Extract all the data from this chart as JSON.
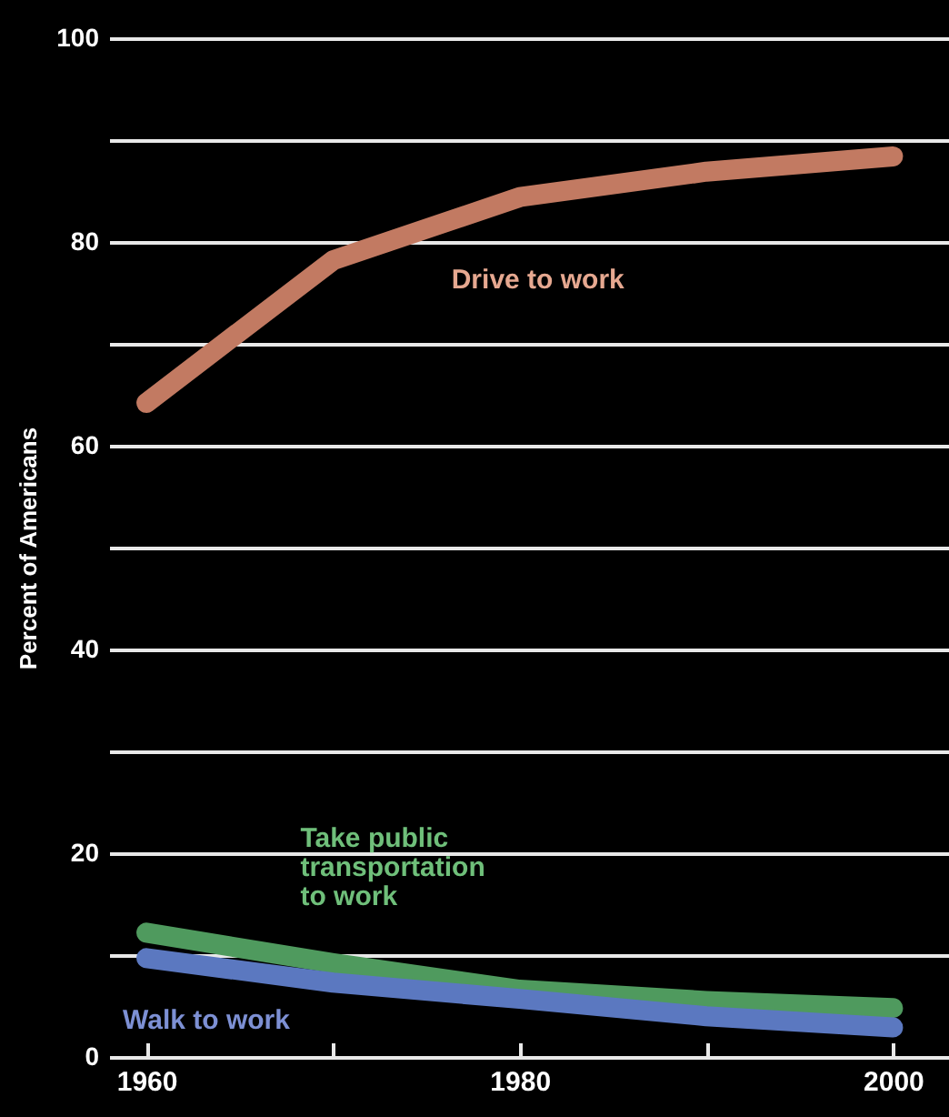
{
  "chart_data": {
    "type": "line",
    "ylabel": "Percent of Americans",
    "x": [
      1960,
      1970,
      1980,
      1990,
      2000
    ],
    "xlim": [
      1958,
      2003
    ],
    "xticks": [
      1960,
      {
        "value": 1970,
        "label": null
      },
      1980,
      {
        "value": 1990,
        "label": null
      },
      2000
    ],
    "ylim": [
      0,
      100
    ],
    "yticks": [
      0,
      {
        "value": 10,
        "label": null
      },
      20,
      {
        "value": 30,
        "label": null
      },
      40,
      {
        "value": 50,
        "label": null
      },
      60,
      {
        "value": 70,
        "label": null
      },
      80,
      {
        "value": 90,
        "label": null
      },
      100
    ],
    "grid": "y",
    "legend": false,
    "line_style": "solid",
    "series": [
      {
        "name": "Drive to work",
        "color": "#c27a62",
        "values": [
          64.2,
          78.2,
          84.4,
          86.9,
          88.4
        ]
      },
      {
        "name": "Take public transportation to work",
        "color": "#4f9a5e",
        "values": [
          12.2,
          9.2,
          6.6,
          5.5,
          4.8
        ]
      },
      {
        "name": "Walk to work",
        "color": "#5b78c0",
        "values": [
          9.7,
          7.3,
          5.7,
          4.0,
          2.9
        ]
      }
    ]
  }
}
